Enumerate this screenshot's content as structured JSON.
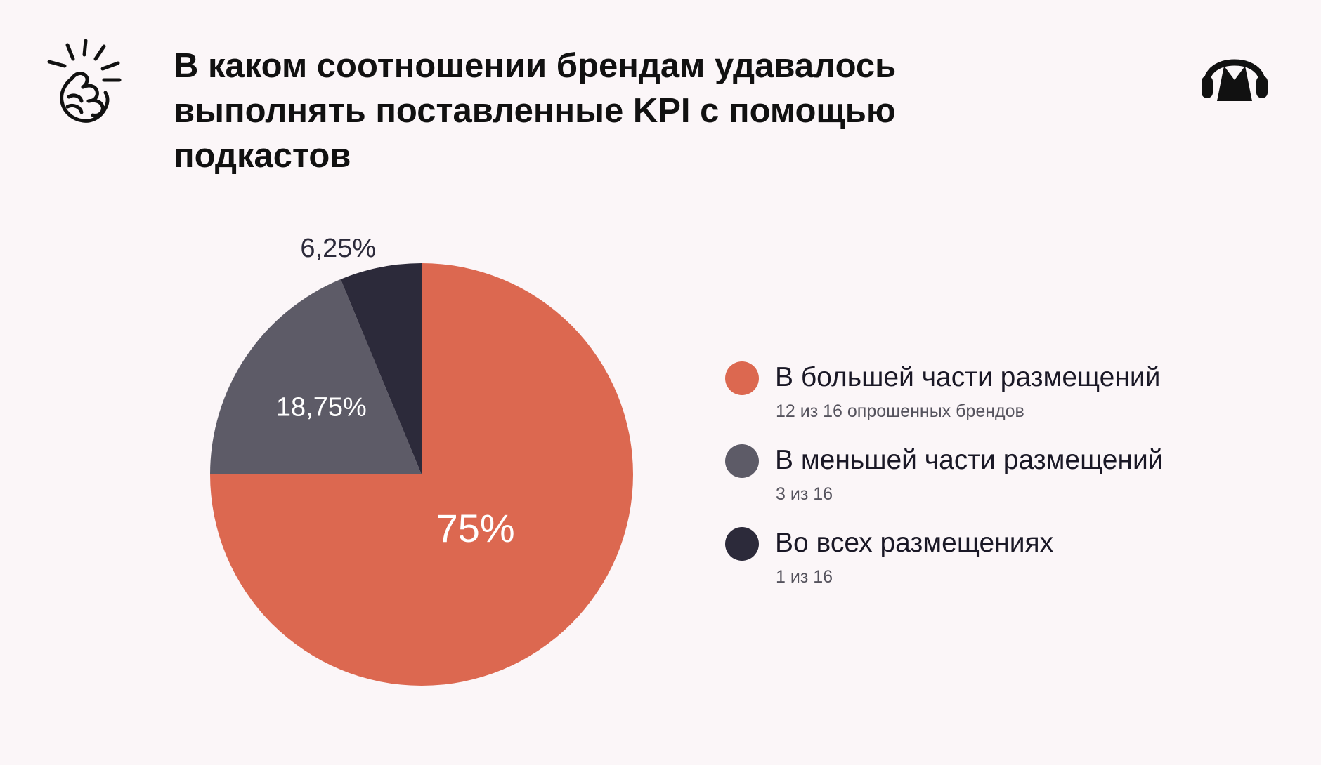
{
  "title": "В каком соотношении брендам удавалось выполнять поставленные KPI с помощью подкастов",
  "icons": {
    "left": "snapping-fingers-icon",
    "right": "headphones-logo-icon"
  },
  "colors": {
    "background": "#fbf6f8",
    "most": "#dc6850",
    "fewer": "#5d5b67",
    "all": "#2c2a3a"
  },
  "chart_data": {
    "type": "pie",
    "start_angle_deg": 0,
    "direction": "clockwise",
    "slices": [
      {
        "label": "В большей части размещений",
        "sublabel": "12 из 16 опрошенных брендов",
        "value": 75,
        "display": "75%",
        "color": "#dc6850",
        "label_color": "#ffffff"
      },
      {
        "label": "В меньшей части размещений",
        "sublabel": "3 из 16",
        "value": 18.75,
        "display": "18,75%",
        "color": "#5d5b67",
        "label_color": "#ffffff"
      },
      {
        "label": "Во всех размещениях",
        "sublabel": "1 из 16",
        "value": 6.25,
        "display": "6,25%",
        "color": "#2c2a3a",
        "label_color": "#2c2a3a"
      }
    ],
    "legend_placement": "right"
  }
}
